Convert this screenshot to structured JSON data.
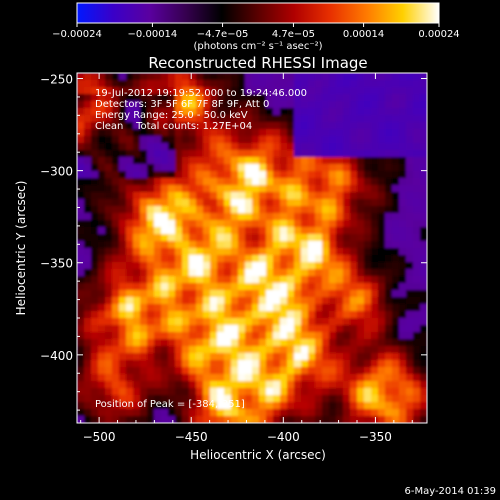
{
  "chart_data": {
    "type": "heatmap",
    "title": "Reconstructed RHESSI Image",
    "xlabel": "Heliocentric X (arcsec)",
    "ylabel": "Heliocentric Y (arcsec)",
    "xlim": [
      -512,
      -322
    ],
    "ylim": [
      -437,
      -247
    ],
    "x_ticks": [
      -500,
      -450,
      -400,
      -350
    ],
    "y_ticks": [
      -250,
      -300,
      -350,
      -400
    ],
    "x_tick_labels": [
      "−500",
      "−450",
      "−400",
      "−350"
    ],
    "y_tick_labels": [
      "−250",
      "−300",
      "−350",
      "−400"
    ],
    "info_lines": [
      "19-Jul-2012 19:19:52.000 to 19:24:46.000",
      "Detectors: 3F 5F 6F 7F 8F 9F, Att 0",
      "Energy Range: 25.0 - 50.0 keV",
      "Clean    Total counts: 1.27E+04"
    ],
    "peak_label": "Position of Peak = [-384,-351]",
    "peak": [
      -384,
      -351
    ],
    "colorbar": {
      "min": -0.00024,
      "max": 0.00024,
      "ticks": [
        -0.00024,
        -0.00014,
        -4.7e-05,
        4.7e-05,
        0.00014,
        0.00024
      ],
      "tick_labels": [
        "−0.00024",
        "−0.00014",
        "−4.7e−05",
        "4.7e−05",
        "0.00014",
        "0.00024"
      ],
      "unit_label": "(photons cm⁻² s⁻¹ asec⁻²)",
      "colors": [
        "#0018ff",
        "#3a00c8",
        "#5a00a0",
        "#360050",
        "#000000",
        "#5a0000",
        "#b00000",
        "#e83000",
        "#ff7a00",
        "#ffd000",
        "#ffffff"
      ]
    }
  },
  "footer": {
    "timestamp": "6-May-2014 01:39"
  }
}
